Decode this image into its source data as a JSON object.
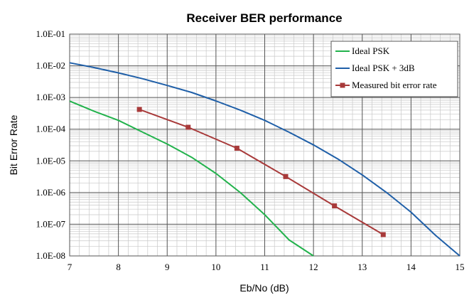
{
  "chart_data": {
    "type": "line",
    "title": "Receiver BER performance",
    "xlabel": "Eb/No (dB)",
    "ylabel": "Bit Error Rate",
    "xlim": [
      7,
      15
    ],
    "ylim": [
      1e-08,
      0.1
    ],
    "yscale": "log",
    "grid": true,
    "legend_position": "top-right",
    "x_ticks": [
      "7",
      "8",
      "9",
      "10",
      "11",
      "12",
      "13",
      "14",
      "15"
    ],
    "y_ticks": [
      "1.0E-01",
      "1.0E-02",
      "1.0E-03",
      "1.0E-04",
      "1.0E-05",
      "1.0E-06",
      "1.0E-07",
      "1.0E-08"
    ],
    "series": [
      {
        "name": "Ideal PSK",
        "color": "#22b24c",
        "marker": "none",
        "x": [
          7.0,
          7.5,
          8.0,
          8.5,
          9.0,
          9.5,
          10.0,
          10.5,
          11.0,
          11.5,
          12.0
        ],
        "y": [
          0.00077,
          0.00037,
          0.00019,
          8e-05,
          3.4e-05,
          1.3e-05,
          4e-06,
          1e-06,
          2e-07,
          3.2e-08,
          1e-08
        ]
      },
      {
        "name": "Ideal PSK + 3dB",
        "color": "#1f5fa8",
        "marker": "none",
        "x": [
          7.0,
          7.5,
          8.0,
          8.5,
          9.0,
          9.5,
          10.0,
          10.5,
          11.0,
          11.5,
          12.0,
          12.5,
          13.0,
          13.5,
          14.0,
          14.5,
          15.0
        ],
        "y": [
          0.0125,
          0.0088,
          0.006,
          0.0039,
          0.0024,
          0.00145,
          0.00078,
          0.0004,
          0.00019,
          8e-05,
          3.2e-05,
          1.15e-05,
          3.6e-06,
          1e-06,
          2.4e-07,
          4.5e-08,
          1e-08
        ]
      },
      {
        "name": "Measured bit error rate",
        "color": "#a83a3a",
        "marker": "square",
        "x": [
          8.43,
          9.43,
          10.43,
          11.43,
          12.43,
          13.43
        ],
        "y": [
          0.00042,
          0.000115,
          2.5e-05,
          3.2e-06,
          3.8e-07,
          4.7e-08
        ]
      }
    ]
  }
}
